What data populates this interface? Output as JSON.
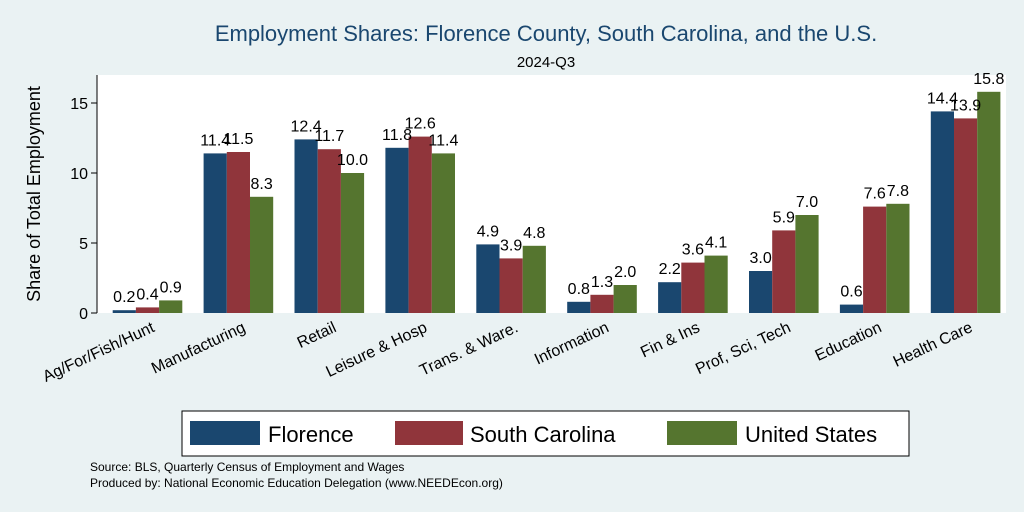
{
  "chart_data": {
    "type": "bar",
    "title": "Employment Shares: Florence County, South Carolina, and the U.S.",
    "subtitle": "2024-Q3",
    "ylabel": "Share of Total Employment",
    "xlabel": "",
    "ylim": [
      0,
      17
    ],
    "yticks": [
      0,
      5,
      10,
      15
    ],
    "grid": false,
    "legend_position": "bottom",
    "categories": [
      "Ag/For/Fish/Hunt",
      "Manufacturing",
      "Retail",
      "Leisure & Hosp",
      "Trans. & Ware.",
      "Information",
      "Fin & Ins",
      "Prof, Sci, Tech",
      "Education",
      "Health Care"
    ],
    "series": [
      {
        "name": "Florence",
        "color": "#1a476f",
        "values": [
          0.2,
          11.4,
          12.4,
          11.8,
          4.9,
          0.8,
          2.2,
          3.0,
          0.6,
          14.4
        ]
      },
      {
        "name": "South Carolina",
        "color": "#90353b",
        "values": [
          0.4,
          11.5,
          11.7,
          12.6,
          3.9,
          1.3,
          3.6,
          5.9,
          7.6,
          13.9
        ]
      },
      {
        "name": "United States",
        "color": "#55752f",
        "values": [
          0.9,
          8.3,
          10.0,
          11.4,
          4.8,
          2.0,
          4.1,
          7.0,
          7.8,
          15.8
        ]
      }
    ],
    "notes": [
      "Source: BLS, Quarterly Census of Employment and Wages",
      "Produced by: National Economic Education Delegation (www.NEEDEcon.org)"
    ]
  }
}
